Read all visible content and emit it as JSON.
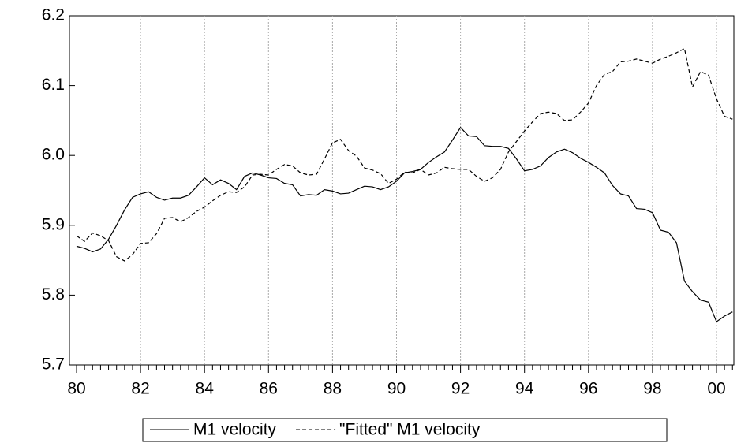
{
  "chart_data": {
    "type": "line",
    "categories": [
      "80",
      null,
      null,
      null,
      null,
      null,
      null,
      null,
      "82",
      null,
      null,
      null,
      null,
      null,
      null,
      null,
      "84",
      null,
      null,
      null,
      null,
      null,
      null,
      null,
      "86",
      null,
      null,
      null,
      null,
      null,
      null,
      null,
      "88",
      null,
      null,
      null,
      null,
      null,
      null,
      null,
      "90",
      null,
      null,
      null,
      null,
      null,
      null,
      null,
      "92",
      null,
      null,
      null,
      null,
      null,
      null,
      null,
      "94",
      null,
      null,
      null,
      null,
      null,
      null,
      null,
      "96",
      null,
      null,
      null,
      null,
      null,
      null,
      null,
      "98",
      null,
      null,
      null,
      null,
      null,
      null,
      null,
      "00",
      null,
      null
    ],
    "series": [
      {
        "name": "M1 velocity",
        "color": "#000000",
        "dash": "solid",
        "values": [
          5.87,
          5.867,
          5.862,
          5.866,
          5.88,
          5.9,
          5.922,
          5.94,
          5.945,
          5.948,
          5.94,
          5.936,
          5.939,
          5.939,
          5.943,
          5.955,
          5.968,
          5.958,
          5.965,
          5.96,
          5.951,
          5.97,
          5.975,
          5.972,
          5.968,
          5.967,
          5.96,
          5.958,
          5.942,
          5.944,
          5.943,
          5.951,
          5.949,
          5.945,
          5.946,
          5.951,
          5.956,
          5.955,
          5.951,
          5.955,
          5.963,
          5.975,
          5.977,
          5.98,
          5.99,
          5.998,
          6.005,
          6.022,
          6.04,
          6.028,
          6.027,
          6.014,
          6.013,
          6.013,
          6.01,
          5.995,
          5.978,
          5.98,
          5.985,
          5.997,
          6.005,
          6.009,
          6.004,
          5.996,
          5.99,
          5.983,
          5.975,
          5.957,
          5.945,
          5.942,
          5.924,
          5.923,
          5.918,
          5.893,
          5.89,
          5.875,
          5.82,
          5.805,
          5.793,
          5.79,
          5.762,
          5.77,
          5.776
        ]
      },
      {
        "name": "\"Fitted\" M1 velocity",
        "color": "#000000",
        "dash": "dashed",
        "values": [
          5.885,
          5.877,
          5.889,
          5.885,
          5.878,
          5.855,
          5.849,
          5.858,
          5.874,
          5.875,
          5.888,
          5.91,
          5.911,
          5.905,
          5.911,
          5.92,
          5.926,
          5.935,
          5.943,
          5.948,
          5.947,
          5.955,
          5.972,
          5.973,
          5.972,
          5.98,
          5.987,
          5.985,
          5.975,
          5.972,
          5.973,
          5.995,
          6.018,
          6.023,
          6.007,
          5.999,
          5.982,
          5.979,
          5.974,
          5.96,
          5.966,
          5.976,
          5.975,
          5.98,
          5.972,
          5.975,
          5.983,
          5.981,
          5.98,
          5.98,
          5.97,
          5.963,
          5.968,
          5.98,
          6.005,
          6.02,
          6.035,
          6.048,
          6.06,
          6.062,
          6.06,
          6.05,
          6.051,
          6.062,
          6.075,
          6.1,
          6.116,
          6.12,
          6.134,
          6.135,
          6.138,
          6.135,
          6.132,
          6.138,
          6.142,
          6.147,
          6.153,
          6.098,
          6.12,
          6.115,
          6.081,
          6.056,
          6.052
        ]
      }
    ],
    "ylim": [
      5.7,
      6.2
    ],
    "yticks": [
      5.7,
      5.8,
      5.9,
      {
        "value": 6.0,
        "label": "6.0"
      },
      6.1,
      6.2
    ],
    "grid": true,
    "legend": "bottom"
  }
}
